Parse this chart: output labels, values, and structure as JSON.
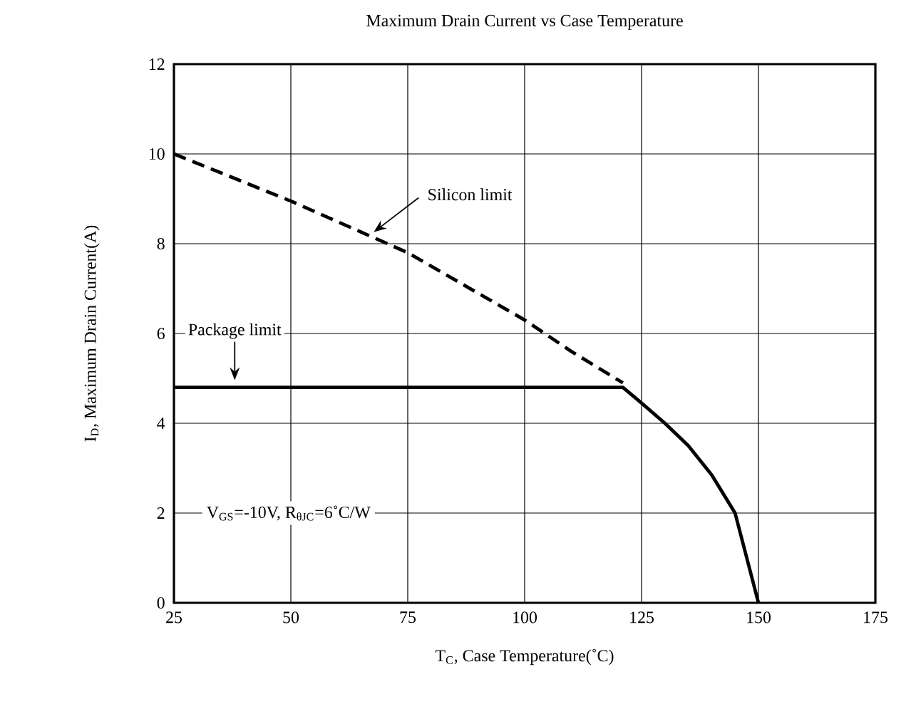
{
  "chart_data": {
    "type": "line",
    "title": "Maximum Drain Current vs Case Temperature",
    "xlabel": "T$_{C}$, Case Temperature(˚C)",
    "ylabel": "I$_{D}$, Maximum Drain Current(A)",
    "xlim": [
      25,
      175
    ],
    "xticks": [
      25,
      50,
      75,
      100,
      125,
      150,
      175
    ],
    "ylim": [
      0,
      12
    ],
    "yticks": [
      0,
      2,
      4,
      6,
      8,
      10,
      12
    ],
    "grid": true,
    "marker": "none",
    "series": [
      {
        "color": "#000000",
        "line_style": "dashed",
        "x": [
          25,
          50,
          75,
          100,
          110,
          121
        ],
        "values": [
          10,
          8.95,
          7.8,
          6.3,
          5.6,
          4.9
        ]
      },
      {
        "color": "#000000",
        "line_style": "solid",
        "x": [
          25,
          121,
          125,
          130,
          135,
          140,
          145,
          150
        ],
        "values": [
          4.8,
          4.8,
          4.45,
          4.0,
          3.5,
          2.85,
          2.0,
          0
        ]
      }
    ],
    "annotations": [
      {
        "text": "Silicon limit",
        "x": 67,
        "y": 8.2
      },
      {
        "text": "Package limit",
        "x": 38,
        "y": 4.8
      },
      "V$_{GS}$=-10V, R$_{θJC}$=6˚C/W"
    ]
  }
}
